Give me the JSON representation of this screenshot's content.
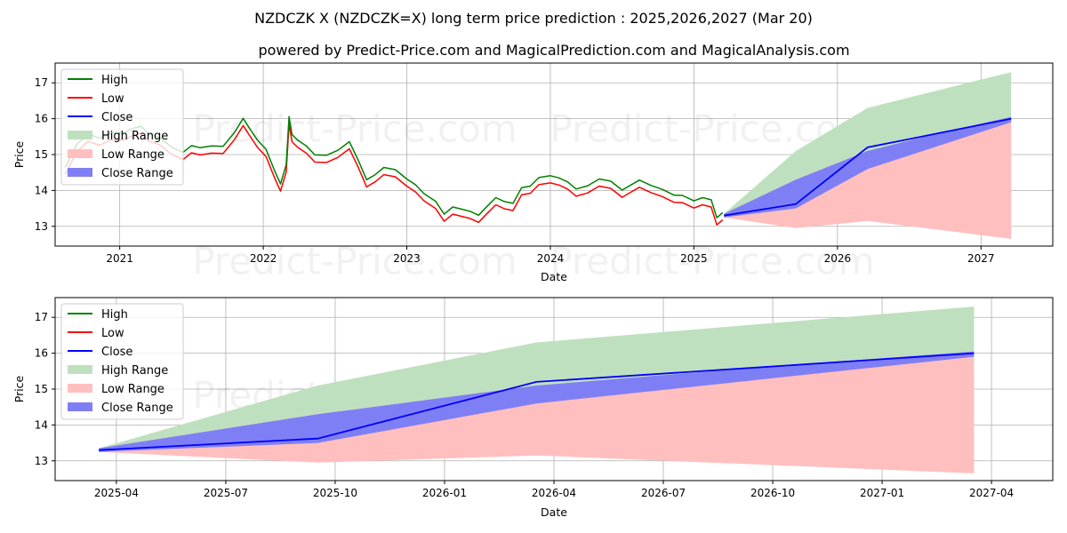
{
  "chart_data": [
    {
      "type": "line",
      "title": "NZDCZK X (NZDCZK=X) long term price prediction : 2025,2026,2027 (Mar 20)",
      "subtitle": "powered by Predict-Price.com and MagicalPrediction.com and MagicalAnalysis.com",
      "xlabel": "Date",
      "ylabel": "Price",
      "xlim": [
        2020.55,
        2027.5
      ],
      "ylim": [
        12.45,
        17.55
      ],
      "x_ticks": [
        {
          "value": 2021.0,
          "label": "2021"
        },
        {
          "value": 2022.0,
          "label": "2022"
        },
        {
          "value": 2023.0,
          "label": "2023"
        },
        {
          "value": 2024.0,
          "label": "2024"
        },
        {
          "value": 2025.0,
          "label": "2025"
        },
        {
          "value": 2026.0,
          "label": "2026"
        },
        {
          "value": 2027.0,
          "label": "2027"
        }
      ],
      "y_ticks": [
        13,
        14,
        15,
        16,
        17
      ],
      "grid": true,
      "legend_position": "upper-left",
      "legend": [
        "High",
        "Low",
        "Close",
        "High Range",
        "Low Range",
        "Close Range"
      ],
      "watermarks": [
        "Predict-Price.com",
        "Predict-Price.com",
        "Predict-Price.com",
        "Predict-Price.com"
      ],
      "history_x": [
        2020.62,
        2020.7,
        2020.78,
        2020.86,
        2020.94,
        2021.02,
        2021.1,
        2021.15,
        2021.2,
        2021.28,
        2021.36,
        2021.44,
        2021.5,
        2021.56,
        2021.64,
        2021.72,
        2021.8,
        2021.86,
        2021.9,
        2021.96,
        2022.02,
        2022.08,
        2022.12,
        2022.16,
        2022.18,
        2022.2,
        2022.24,
        2022.3,
        2022.36,
        2022.44,
        2022.52,
        2022.6,
        2022.66,
        2022.72,
        2022.78,
        2022.84,
        2022.92,
        2023.0,
        2023.06,
        2023.12,
        2023.2,
        2023.26,
        2023.32,
        2023.38,
        2023.44,
        2023.5,
        2023.56,
        2023.62,
        2023.68,
        2023.74,
        2023.8,
        2023.86,
        2023.92,
        2024.0,
        2024.06,
        2024.12,
        2024.18,
        2024.26,
        2024.34,
        2024.42,
        2024.5,
        2024.56,
        2024.62,
        2024.7,
        2024.78,
        2024.86,
        2024.92,
        2025.0,
        2025.06,
        2025.12,
        2025.16,
        2025.2
      ],
      "history_close": [
        14.6,
        15.2,
        15.45,
        15.3,
        15.55,
        15.5,
        15.6,
        15.75,
        15.5,
        15.35,
        15.05,
        15.0,
        15.15,
        15.05,
        15.2,
        15.15,
        15.5,
        15.85,
        15.7,
        15.3,
        15.0,
        14.5,
        14.1,
        14.6,
        15.9,
        15.5,
        15.3,
        15.1,
        14.95,
        14.9,
        15.0,
        15.2,
        14.8,
        14.2,
        14.3,
        14.6,
        14.5,
        14.2,
        14.0,
        13.85,
        13.6,
        13.2,
        13.5,
        13.4,
        13.3,
        13.15,
        13.5,
        13.7,
        13.55,
        13.6,
        14.0,
        14.0,
        14.2,
        14.35,
        14.25,
        14.1,
        14.0,
        14.05,
        14.2,
        14.1,
        13.95,
        14.05,
        14.15,
        14.1,
        13.95,
        13.75,
        13.7,
        13.65,
        13.7,
        13.6,
        13.2,
        13.3
      ],
      "forecast_x": [
        2025.21,
        2025.71,
        2026.21,
        2026.71,
        2027.21
      ],
      "forecast_close": [
        13.3,
        13.62,
        15.2,
        15.6,
        16.0
      ],
      "high_range": [
        13.35,
        15.1,
        16.3,
        16.8,
        17.3
      ],
      "low_range": [
        13.25,
        12.95,
        13.15,
        12.9,
        12.65
      ],
      "close_range_upper": [
        13.35,
        14.3,
        15.1,
        15.6,
        16.05
      ],
      "close_range_lower": [
        13.25,
        13.5,
        14.6,
        15.25,
        15.9
      ]
    },
    {
      "type": "line",
      "xlabel": "Date",
      "ylabel": "Price",
      "xlim": [
        2025.11,
        2027.39
      ],
      "ylim": [
        12.45,
        17.55
      ],
      "x_ticks": [
        {
          "value": 2025.25,
          "label": "2025-04"
        },
        {
          "value": 2025.5,
          "label": "2025-07"
        },
        {
          "value": 2025.75,
          "label": "2025-10"
        },
        {
          "value": 2026.0,
          "label": "2026-01"
        },
        {
          "value": 2026.25,
          "label": "2026-04"
        },
        {
          "value": 2026.5,
          "label": "2026-07"
        },
        {
          "value": 2026.75,
          "label": "2026-10"
        },
        {
          "value": 2027.0,
          "label": "2027-01"
        },
        {
          "value": 2027.25,
          "label": "2027-04"
        }
      ],
      "y_ticks": [
        13,
        14,
        15,
        16,
        17
      ],
      "grid": true,
      "legend_position": "upper-left",
      "legend": [
        "High",
        "Low",
        "Close",
        "High Range",
        "Low Range",
        "Close Range"
      ],
      "watermarks": [
        "Predict-Price.com",
        "Predict-Price.com"
      ],
      "forecast_x": [
        2025.21,
        2025.71,
        2026.21,
        2026.71,
        2027.21
      ],
      "forecast_close": [
        13.3,
        13.62,
        15.2,
        15.6,
        16.0
      ],
      "high_range": [
        13.35,
        15.1,
        16.3,
        16.8,
        17.3
      ],
      "low_range": [
        13.25,
        12.95,
        13.15,
        12.9,
        12.65
      ],
      "close_range_upper": [
        13.35,
        14.3,
        15.1,
        15.6,
        16.05
      ],
      "close_range_lower": [
        13.25,
        13.5,
        14.6,
        15.25,
        15.9
      ]
    }
  ],
  "colors": {
    "high": "#008000",
    "low": "#ff0000",
    "close": "#0000ff",
    "high_range": "#bfe0bf",
    "low_range": "#ffbfbf",
    "close_range": "#7f7ff5",
    "grid": "#b0b0b0"
  }
}
